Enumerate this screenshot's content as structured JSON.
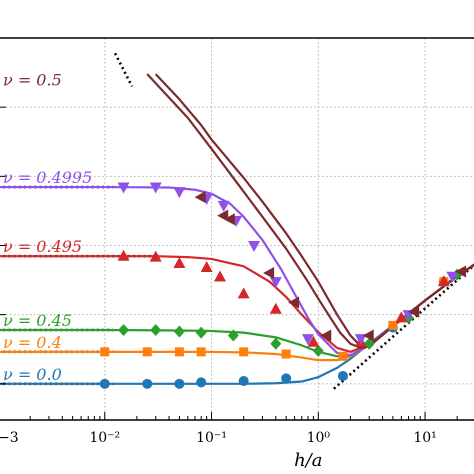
{
  "chart_data": {
    "type": "line",
    "title": "",
    "xlabel": "h/a",
    "ylabel": "",
    "x_scale": "log",
    "y_scale": "log",
    "xlim": [
      0.001,
      30
    ],
    "ylim": [
      0.3,
      100000
    ],
    "grid": true,
    "x_ticks": [
      {
        "value": 0.001,
        "label": "−3"
      },
      {
        "value": 0.01,
        "label": "10⁻²"
      },
      {
        "value": 0.1,
        "label": "10⁻¹"
      },
      {
        "value": 1,
        "label": "10⁰"
      },
      {
        "value": 10,
        "label": "10¹"
      }
    ],
    "y_gridlines": [
      1,
      10,
      100,
      1000,
      10000
    ],
    "series": [
      {
        "name": "ν = 0.0",
        "label": "ν = 0.0",
        "color": "#1f77b4",
        "marker": "circle",
        "curve": [
          [
            0.001,
            1.0
          ],
          [
            0.003,
            1.0
          ],
          [
            0.01,
            1.0
          ],
          [
            0.03,
            1.0
          ],
          [
            0.1,
            1.0
          ],
          [
            0.2,
            1.0
          ],
          [
            0.4,
            1.02
          ],
          [
            0.7,
            1.08
          ],
          [
            1.0,
            1.25
          ],
          [
            1.5,
            1.7
          ],
          [
            2,
            2.3
          ],
          [
            3,
            3.8
          ],
          [
            5,
            7
          ],
          [
            10,
            16
          ],
          [
            20,
            36
          ],
          [
            30,
            55
          ]
        ],
        "markers": [
          [
            0.01,
            1.0
          ],
          [
            0.025,
            1.0
          ],
          [
            0.05,
            1.0
          ],
          [
            0.08,
            1.05
          ],
          [
            0.2,
            1.1
          ],
          [
            0.5,
            1.2
          ],
          [
            1.7,
            1.3
          ],
          [
            5,
            6.5
          ],
          [
            15,
            30
          ]
        ]
      },
      {
        "name": "ν = 0.4",
        "label": "ν = 0.4",
        "color": "#ff7f0e",
        "marker": "square",
        "curve": [
          [
            0.001,
            2.9
          ],
          [
            0.01,
            2.9
          ],
          [
            0.05,
            2.9
          ],
          [
            0.1,
            2.89
          ],
          [
            0.2,
            2.85
          ],
          [
            0.4,
            2.7
          ],
          [
            0.7,
            2.4
          ],
          [
            1.0,
            2.2
          ],
          [
            1.5,
            2.2
          ],
          [
            2,
            2.5
          ],
          [
            3,
            3.6
          ],
          [
            5,
            6.8
          ],
          [
            10,
            16
          ],
          [
            20,
            36
          ],
          [
            30,
            55
          ]
        ],
        "markers": [
          [
            0.01,
            2.9
          ],
          [
            0.025,
            2.9
          ],
          [
            0.05,
            2.9
          ],
          [
            0.08,
            2.9
          ],
          [
            0.2,
            2.9
          ],
          [
            0.5,
            2.7
          ],
          [
            1.7,
            2.5
          ],
          [
            5,
            7
          ],
          [
            15,
            30
          ]
        ]
      },
      {
        "name": "ν = 0.45",
        "label": "ν = 0.45",
        "color": "#2ca02c",
        "marker": "diamond",
        "curve": [
          [
            0.001,
            6.0
          ],
          [
            0.01,
            6.0
          ],
          [
            0.05,
            5.9
          ],
          [
            0.1,
            5.8
          ],
          [
            0.2,
            5.5
          ],
          [
            0.4,
            4.7
          ],
          [
            0.7,
            3.6
          ],
          [
            1.0,
            2.9
          ],
          [
            1.5,
            2.5
          ],
          [
            2,
            2.6
          ],
          [
            3,
            3.6
          ],
          [
            5,
            6.8
          ],
          [
            10,
            16
          ],
          [
            20,
            36
          ],
          [
            30,
            55
          ]
        ],
        "markers": [
          [
            0.015,
            6.0
          ],
          [
            0.03,
            6.0
          ],
          [
            0.05,
            5.7
          ],
          [
            0.08,
            5.5
          ],
          [
            0.16,
            5.0
          ],
          [
            0.4,
            3.8
          ],
          [
            1.0,
            3.0
          ],
          [
            3,
            3.8
          ],
          [
            7,
            9
          ],
          [
            20,
            38
          ]
        ]
      },
      {
        "name": "ν = 0.495",
        "label": "ν = 0.495",
        "color": "#d62728",
        "marker": "triangle-up",
        "curve": [
          [
            0.001,
            70
          ],
          [
            0.01,
            70
          ],
          [
            0.03,
            70
          ],
          [
            0.06,
            68
          ],
          [
            0.1,
            64
          ],
          [
            0.2,
            50
          ],
          [
            0.35,
            30
          ],
          [
            0.5,
            18
          ],
          [
            0.7,
            10
          ],
          [
            1.0,
            5.6
          ],
          [
            1.5,
            3.3
          ],
          [
            2,
            2.9
          ],
          [
            3,
            3.7
          ],
          [
            5,
            6.8
          ],
          [
            10,
            16
          ],
          [
            20,
            36
          ],
          [
            30,
            55
          ]
        ],
        "markers": [
          [
            0.015,
            70
          ],
          [
            0.03,
            68
          ],
          [
            0.05,
            55
          ],
          [
            0.09,
            48
          ],
          [
            0.12,
            35
          ],
          [
            0.2,
            20
          ],
          [
            0.4,
            12
          ],
          [
            0.9,
            4
          ],
          [
            2.5,
            4
          ],
          [
            6,
            9
          ],
          [
            15,
            30
          ]
        ]
      },
      {
        "name": "ν = 0.4995",
        "label": "ν = 0.4995",
        "color": "#8f52e9",
        "marker": "triangle-down",
        "curve": [
          [
            0.001,
            700
          ],
          [
            0.01,
            700
          ],
          [
            0.04,
            690
          ],
          [
            0.07,
            640
          ],
          [
            0.1,
            560
          ],
          [
            0.15,
            400
          ],
          [
            0.2,
            260
          ],
          [
            0.3,
            120
          ],
          [
            0.45,
            45
          ],
          [
            0.6,
            20
          ],
          [
            0.8,
            9
          ],
          [
            1.0,
            5.2
          ],
          [
            1.5,
            2.8
          ],
          [
            2,
            2.6
          ],
          [
            3,
            3.6
          ],
          [
            5,
            6.8
          ],
          [
            10,
            16
          ],
          [
            20,
            36
          ],
          [
            30,
            55
          ]
        ],
        "markers": [
          [
            0.015,
            700
          ],
          [
            0.03,
            700
          ],
          [
            0.05,
            600
          ],
          [
            0.09,
            480
          ],
          [
            0.13,
            380
          ],
          [
            0.17,
            230
          ],
          [
            0.25,
            100
          ],
          [
            0.4,
            30
          ],
          [
            0.8,
            4.5
          ],
          [
            2.5,
            4.5
          ],
          [
            7,
            10
          ],
          [
            18,
            36
          ]
        ]
      },
      {
        "name": "ν = 0.5",
        "label": "ν = 0.5",
        "color": "#7b2b2b",
        "marker": "triangle-left",
        "curve": [
          [
            0.03,
            30000
          ],
          [
            0.05,
            13000
          ],
          [
            0.08,
            5500
          ],
          [
            0.1,
            3400
          ],
          [
            0.2,
            950
          ],
          [
            0.3,
            430
          ],
          [
            0.5,
            150
          ],
          [
            0.7,
            70
          ],
          [
            1.0,
            30
          ],
          [
            1.5,
            10
          ],
          [
            2,
            5
          ],
          [
            2.5,
            3.5
          ],
          [
            3,
            3.5
          ],
          [
            5,
            6.8
          ],
          [
            10,
            16
          ],
          [
            20,
            36
          ],
          [
            30,
            55
          ]
        ],
        "markers": [
          [
            0.08,
            500
          ],
          [
            0.13,
            270
          ],
          [
            0.15,
            240
          ],
          [
            0.35,
            40
          ],
          [
            0.6,
            15
          ],
          [
            1.2,
            5
          ],
          [
            3,
            5
          ],
          [
            8,
            11
          ],
          [
            22,
            42
          ]
        ]
      },
      {
        "name": "ν = 0.5 (sharp)",
        "label": "",
        "color": "#7b2b2b",
        "marker": "none",
        "curve": [
          [
            0.025,
            30000
          ],
          [
            0.06,
            7000
          ],
          [
            0.1,
            2500
          ],
          [
            0.2,
            600
          ],
          [
            0.3,
            260
          ],
          [
            0.5,
            90
          ],
          [
            0.8,
            30
          ],
          [
            1.0,
            17
          ],
          [
            1.3,
            9
          ],
          [
            1.6,
            5.5
          ],
          [
            2,
            3.8
          ],
          [
            2.5,
            3.3
          ],
          [
            3,
            3.5
          ],
          [
            5,
            6.8
          ],
          [
            10,
            16
          ],
          [
            20,
            36
          ],
          [
            30,
            55
          ]
        ],
        "markers": []
      }
    ],
    "asymptotes": [
      {
        "name": "plateau-0.0",
        "points": [
          [
            0.001,
            1.0
          ],
          [
            0.012,
            1.0
          ]
        ]
      },
      {
        "name": "plateau-0.4",
        "points": [
          [
            0.001,
            2.9
          ],
          [
            0.012,
            2.9
          ]
        ]
      },
      {
        "name": "plateau-0.45",
        "points": [
          [
            0.001,
            6.0
          ],
          [
            0.012,
            6.0
          ]
        ]
      },
      {
        "name": "plateau-0.495",
        "points": [
          [
            0.001,
            70
          ],
          [
            0.03,
            70
          ]
        ]
      },
      {
        "name": "plateau-0.4995",
        "points": [
          [
            0.001,
            700
          ],
          [
            0.012,
            700
          ]
        ]
      },
      {
        "name": "small-h-0.5",
        "points": [
          [
            0.0125,
            60000
          ],
          [
            0.018,
            20000
          ]
        ]
      },
      {
        "name": "large-h",
        "points": [
          [
            1.4,
            0.85
          ],
          [
            30,
            55
          ]
        ]
      }
    ]
  }
}
